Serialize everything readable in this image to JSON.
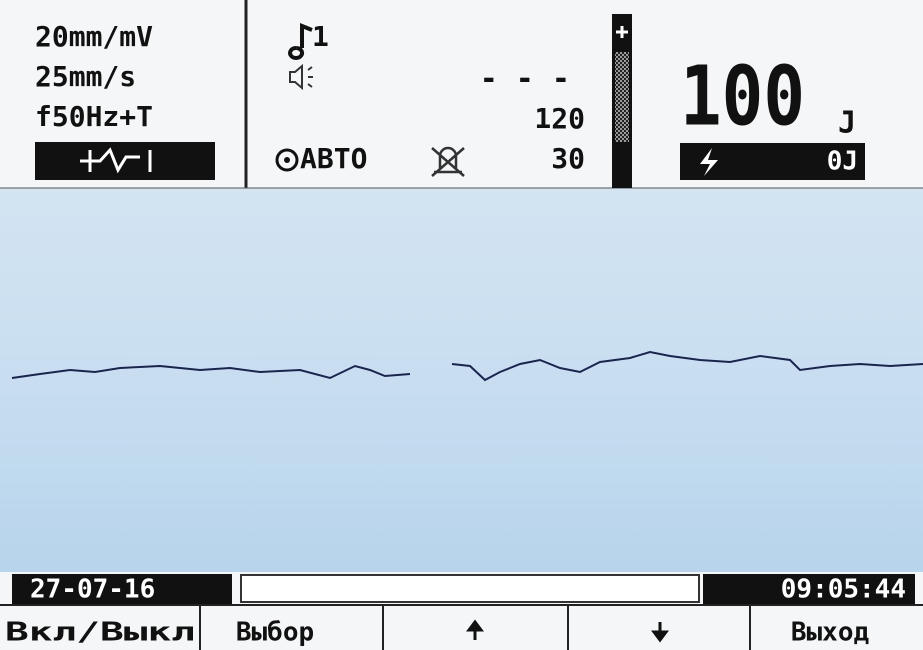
{
  "header": {
    "gain": "20mm/mV",
    "speed": "25mm/s",
    "filter": "f50Hz+T",
    "lead": "1",
    "heart_rate": "- - -",
    "alarm_high": "120",
    "mode": "АВТО",
    "alarm_low": "30",
    "energy": "100",
    "energy_unit": "J",
    "charge": "0J"
  },
  "status_bar": {
    "date": "27-07-16",
    "time": "09:05:44"
  },
  "softkeys": [
    "Вкл/Выкл",
    "Выбор",
    "Выход"
  ]
}
